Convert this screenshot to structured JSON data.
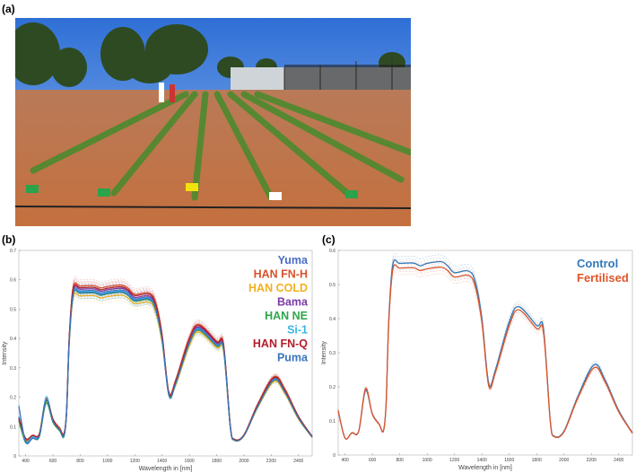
{
  "panels": {
    "a": "(a)",
    "b": "(b)",
    "c": "(c)"
  },
  "photo": {
    "description_icon": "field-photo"
  },
  "chart_data": [
    {
      "type": "line",
      "panel": "(b)",
      "xlabel": "Wavelength in [nm]",
      "ylabel": "Intensity",
      "xlim": [
        350,
        2500
      ],
      "ylim": [
        0,
        0.7
      ],
      "xticks": [
        400,
        600,
        800,
        1000,
        1200,
        1400,
        1600,
        1800,
        2000,
        2200,
        2400
      ],
      "yticks": [
        0,
        0.1,
        0.2,
        0.3,
        0.4,
        0.5,
        0.6,
        0.7
      ],
      "grid": false,
      "legend_placement": "top-right",
      "x": [
        350,
        400,
        450,
        500,
        550,
        600,
        650,
        680,
        700,
        720,
        750,
        800,
        900,
        950,
        1000,
        1100,
        1150,
        1200,
        1300,
        1350,
        1400,
        1450,
        1500,
        1600,
        1670,
        1800,
        1850,
        1900,
        1930,
        2000,
        2100,
        2220,
        2300,
        2400,
        2500
      ],
      "series": [
        {
          "name": "Yuma",
          "color": "#4a6cc4",
          "values": [
            0.13,
            0.05,
            0.065,
            0.07,
            0.19,
            0.12,
            0.09,
            0.07,
            0.15,
            0.4,
            0.56,
            0.562,
            0.563,
            0.555,
            0.56,
            0.565,
            0.555,
            0.535,
            0.54,
            0.51,
            0.4,
            0.21,
            0.25,
            0.39,
            0.435,
            0.38,
            0.37,
            0.1,
            0.055,
            0.07,
            0.17,
            0.262,
            0.22,
            0.13,
            0.065
          ]
        },
        {
          "name": "HAN FN-H",
          "color": "#d8512b",
          "values": [
            0.13,
            0.055,
            0.07,
            0.075,
            0.195,
            0.125,
            0.095,
            0.075,
            0.155,
            0.412,
            0.577,
            0.579,
            0.58,
            0.572,
            0.577,
            0.582,
            0.572,
            0.551,
            0.556,
            0.525,
            0.412,
            0.216,
            0.258,
            0.402,
            0.448,
            0.391,
            0.381,
            0.103,
            0.057,
            0.072,
            0.175,
            0.27,
            0.227,
            0.134,
            0.067
          ]
        },
        {
          "name": "HAN COLD",
          "color": "#f2b01e",
          "values": [
            0.12,
            0.05,
            0.063,
            0.068,
            0.185,
            0.116,
            0.087,
            0.068,
            0.146,
            0.388,
            0.543,
            0.545,
            0.546,
            0.538,
            0.543,
            0.548,
            0.538,
            0.519,
            0.524,
            0.495,
            0.388,
            0.215,
            0.243,
            0.378,
            0.422,
            0.369,
            0.359,
            0.097,
            0.053,
            0.068,
            0.165,
            0.254,
            0.213,
            0.126,
            0.063
          ]
        },
        {
          "name": "Bama",
          "color": "#7b3aa6",
          "values": [
            0.125,
            0.05,
            0.065,
            0.07,
            0.19,
            0.12,
            0.09,
            0.07,
            0.152,
            0.404,
            0.566,
            0.568,
            0.569,
            0.561,
            0.566,
            0.571,
            0.561,
            0.54,
            0.545,
            0.515,
            0.404,
            0.212,
            0.253,
            0.394,
            0.439,
            0.384,
            0.374,
            0.101,
            0.056,
            0.071,
            0.172,
            0.265,
            0.222,
            0.131,
            0.066
          ]
        },
        {
          "name": "HAN NE",
          "color": "#2ea64a",
          "values": [
            0.12,
            0.045,
            0.06,
            0.065,
            0.18,
            0.115,
            0.085,
            0.065,
            0.148,
            0.394,
            0.552,
            0.554,
            0.555,
            0.547,
            0.552,
            0.557,
            0.547,
            0.527,
            0.532,
            0.502,
            0.394,
            0.207,
            0.246,
            0.384,
            0.428,
            0.374,
            0.364,
            0.099,
            0.054,
            0.069,
            0.167,
            0.258,
            0.217,
            0.128,
            0.064
          ]
        },
        {
          "name": "Si-1",
          "color": "#3cb6e6",
          "values": [
            0.135,
            0.05,
            0.065,
            0.07,
            0.2,
            0.12,
            0.09,
            0.07,
            0.149,
            0.398,
            0.557,
            0.559,
            0.56,
            0.552,
            0.557,
            0.562,
            0.552,
            0.532,
            0.537,
            0.507,
            0.398,
            0.209,
            0.249,
            0.388,
            0.433,
            0.378,
            0.368,
            0.1,
            0.055,
            0.07,
            0.169,
            0.261,
            0.219,
            0.129,
            0.065
          ]
        },
        {
          "name": "HAN FN-Q",
          "color": "#b01d2a",
          "values": [
            0.13,
            0.06,
            0.07,
            0.075,
            0.19,
            0.125,
            0.09,
            0.075,
            0.153,
            0.408,
            0.571,
            0.573,
            0.574,
            0.566,
            0.571,
            0.576,
            0.566,
            0.546,
            0.551,
            0.52,
            0.408,
            0.214,
            0.255,
            0.398,
            0.444,
            0.388,
            0.377,
            0.102,
            0.056,
            0.071,
            0.173,
            0.267,
            0.224,
            0.133,
            0.066
          ]
        },
        {
          "name": "Puma",
          "color": "#3a74bc",
          "values": [
            0.17,
            0.048,
            0.06,
            0.068,
            0.19,
            0.118,
            0.088,
            0.068,
            0.149,
            0.396,
            0.554,
            0.556,
            0.557,
            0.549,
            0.554,
            0.559,
            0.549,
            0.53,
            0.535,
            0.505,
            0.396,
            0.208,
            0.248,
            0.386,
            0.431,
            0.376,
            0.366,
            0.099,
            0.054,
            0.069,
            0.168,
            0.259,
            0.218,
            0.129,
            0.064
          ]
        }
      ]
    },
    {
      "type": "line",
      "panel": "(c)",
      "xlabel": "Wavelength in [nm]",
      "ylabel": "Intensity",
      "xlim": [
        350,
        2500
      ],
      "ylim": [
        0,
        0.6
      ],
      "xticks": [
        400,
        600,
        800,
        1000,
        1200,
        1400,
        1600,
        1800,
        2000,
        2200,
        2400
      ],
      "yticks": [
        0,
        0.1,
        0.2,
        0.3,
        0.4,
        0.5,
        0.6
      ],
      "grid": false,
      "legend_placement": "top-right",
      "x": [
        350,
        400,
        450,
        500,
        550,
        600,
        650,
        680,
        700,
        720,
        750,
        800,
        900,
        950,
        1000,
        1100,
        1150,
        1200,
        1300,
        1350,
        1400,
        1450,
        1500,
        1600,
        1670,
        1800,
        1850,
        1900,
        1930,
        2000,
        2100,
        2220,
        2300,
        2400,
        2500
      ],
      "series": [
        {
          "name": "Control",
          "color": "#2f78b8",
          "values": [
            0.13,
            0.05,
            0.065,
            0.07,
            0.19,
            0.12,
            0.09,
            0.07,
            0.15,
            0.4,
            0.56,
            0.562,
            0.563,
            0.555,
            0.562,
            0.567,
            0.555,
            0.535,
            0.54,
            0.51,
            0.4,
            0.21,
            0.25,
            0.39,
            0.435,
            0.38,
            0.37,
            0.1,
            0.055,
            0.07,
            0.17,
            0.265,
            0.22,
            0.13,
            0.065
          ]
        },
        {
          "name": "Fertilised",
          "color": "#e0562a",
          "values": [
            0.13,
            0.05,
            0.065,
            0.07,
            0.195,
            0.12,
            0.09,
            0.07,
            0.148,
            0.39,
            0.546,
            0.548,
            0.549,
            0.541,
            0.546,
            0.551,
            0.541,
            0.522,
            0.527,
            0.497,
            0.39,
            0.203,
            0.244,
            0.38,
            0.426,
            0.371,
            0.361,
            0.098,
            0.054,
            0.068,
            0.166,
            0.256,
            0.215,
            0.127,
            0.064
          ]
        }
      ]
    }
  ]
}
